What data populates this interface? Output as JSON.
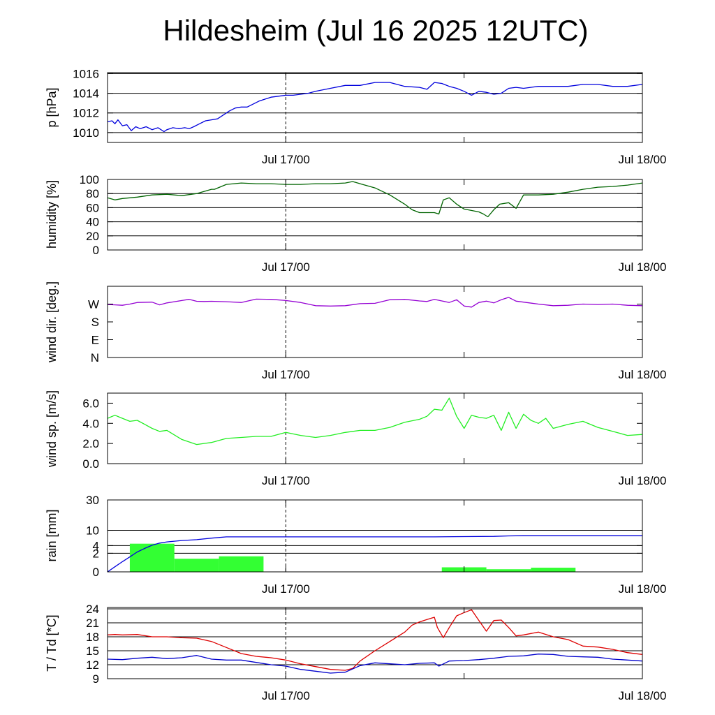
{
  "title": "Hildesheim (Jul 16 2025 12UTC)",
  "time_axis": {
    "range_hours": [
      0,
      36
    ],
    "major_ticks": [
      {
        "h": 12,
        "label": "Jul 17/00"
      },
      {
        "h": 36,
        "label": "Jul 18/00"
      }
    ],
    "minor_ticks_hours": [
      24
    ],
    "midnight_marker_hours": 12
  },
  "colors": {
    "pressure": "#0000dd",
    "humidity": "#006400",
    "wind_dir": "#9400d3",
    "wind_speed": "#22ee22",
    "rain_bar": "#33ff33",
    "rain_cum": "#0000dd",
    "temperature": "#dd0000",
    "dewpoint": "#0000cc"
  },
  "chart_data": [
    {
      "type": "line",
      "ylabel": "p [hPa]",
      "ylim": [
        1009,
        1016.1
      ],
      "yticks": [
        1010,
        1012,
        1014,
        1016
      ],
      "ytick_labels": [
        "1010",
        "1012",
        "1014",
        "1016"
      ],
      "grid": true,
      "series": [
        {
          "color_key": "pressure",
          "x": [
            0,
            0.3,
            0.5,
            0.7,
            1.0,
            1.3,
            1.6,
            1.9,
            2.2,
            2.6,
            3.0,
            3.4,
            3.8,
            4.0,
            4.4,
            4.8,
            5.2,
            5.5,
            5.8,
            6.2,
            6.6,
            7.0,
            7.4,
            7.8,
            8.2,
            8.6,
            9.0,
            9.4,
            9.8,
            10.2,
            10.6,
            11.0,
            11.5,
            12.0,
            12.5,
            13.0,
            13.5,
            14.0,
            15.0,
            16.0,
            17.0,
            18.0,
            19.0,
            20.0,
            21.0,
            21.5,
            22.0,
            22.5,
            23.0,
            23.5,
            24.0,
            24.5,
            25.0,
            25.5,
            26.0,
            26.5,
            27.0,
            27.5,
            28.0,
            29.0,
            30.0,
            31.0,
            32.0,
            33.0,
            34.0,
            35.0,
            36.0
          ],
          "y": [
            1011.1,
            1011.2,
            1010.9,
            1011.3,
            1010.7,
            1010.8,
            1010.2,
            1010.6,
            1010.4,
            1010.6,
            1010.3,
            1010.5,
            1010.1,
            1010.3,
            1010.5,
            1010.4,
            1010.5,
            1010.4,
            1010.6,
            1010.9,
            1011.2,
            1011.3,
            1011.4,
            1011.8,
            1012.2,
            1012.5,
            1012.6,
            1012.6,
            1012.9,
            1013.2,
            1013.4,
            1013.6,
            1013.7,
            1013.8,
            1013.8,
            1013.9,
            1014.0,
            1014.2,
            1014.5,
            1014.8,
            1014.8,
            1015.1,
            1015.1,
            1014.7,
            1014.6,
            1014.4,
            1015.1,
            1015.0,
            1014.7,
            1014.5,
            1014.2,
            1013.8,
            1014.2,
            1014.1,
            1013.9,
            1014.0,
            1014.5,
            1014.6,
            1014.5,
            1014.7,
            1014.7,
            1014.7,
            1014.9,
            1014.9,
            1014.7,
            1014.7,
            1014.9
          ]
        }
      ]
    },
    {
      "type": "line",
      "ylabel": "humidity [%]",
      "ylim": [
        0,
        100
      ],
      "yticks": [
        0,
        20,
        40,
        60,
        80,
        100
      ],
      "ytick_labels": [
        "0",
        "20",
        "40",
        "60",
        "80",
        "100"
      ],
      "grid": true,
      "series": [
        {
          "color_key": "humidity",
          "x": [
            0,
            0.5,
            1.0,
            2.0,
            3.0,
            4.0,
            5.0,
            6.0,
            7.0,
            7.2,
            8.0,
            9.0,
            10.0,
            11.0,
            12.0,
            13.0,
            14.0,
            15.0,
            16.0,
            16.5,
            17.0,
            18.0,
            19.0,
            20.0,
            20.5,
            21.0,
            22.0,
            22.3,
            22.6,
            23.0,
            23.5,
            24.0,
            25.0,
            25.3,
            25.6,
            26.0,
            26.4,
            27.0,
            27.5,
            28.0,
            29.0,
            30.0,
            31.0,
            32.0,
            33.0,
            34.0,
            35.0,
            36.0
          ],
          "y": [
            74,
            71,
            73,
            75,
            78,
            79,
            77,
            80,
            86,
            86,
            93,
            95,
            94,
            94,
            93,
            93,
            94,
            94,
            95,
            97,
            94,
            88,
            78,
            65,
            57,
            53,
            53,
            51,
            71,
            74,
            65,
            58,
            54,
            51,
            47,
            57,
            65,
            67,
            59,
            78,
            78,
            79,
            82,
            86,
            89,
            90,
            92,
            95
          ]
        }
      ]
    },
    {
      "type": "line",
      "ylabel": "wind dir. [deg.]",
      "ylim": [
        0,
        360
      ],
      "yticks": [
        0,
        90,
        180,
        270
      ],
      "ytick_labels": [
        "N",
        "E",
        "S",
        "W"
      ],
      "grid": false,
      "series": [
        {
          "color_key": "wind_dir",
          "x": [
            0,
            0.5,
            1.0,
            1.5,
            2.0,
            3.0,
            3.5,
            4.0,
            5.0,
            5.5,
            6.0,
            6.5,
            7.0,
            8.0,
            9.0,
            10.0,
            11.0,
            12.0,
            13.0,
            14.0,
            15.0,
            16.0,
            17.0,
            18.0,
            19.0,
            20.0,
            21.0,
            21.5,
            22.0,
            22.5,
            23.0,
            23.5,
            24.0,
            24.5,
            25.0,
            25.5,
            26.0,
            26.5,
            27.0,
            27.5,
            28.0,
            29.0,
            30.0,
            31.0,
            32.0,
            33.0,
            34.0,
            35.0,
            36.0
          ],
          "y": [
            268,
            266,
            264,
            270,
            278,
            280,
            266,
            276,
            288,
            294,
            284,
            283,
            284,
            282,
            278,
            295,
            294,
            288,
            278,
            262,
            260,
            262,
            272,
            274,
            292,
            294,
            286,
            283,
            294,
            286,
            278,
            292,
            260,
            255,
            278,
            285,
            276,
            292,
            304,
            285,
            280,
            270,
            262,
            264,
            270,
            268,
            270,
            264,
            262
          ]
        }
      ]
    },
    {
      "type": "line",
      "ylabel": "wind sp. [m/s]",
      "ylim": [
        0,
        7.0
      ],
      "yticks": [
        0,
        2,
        4,
        6
      ],
      "ytick_labels": [
        "0.0",
        "2.0",
        "4.0",
        "6.0"
      ],
      "grid": false,
      "series": [
        {
          "color_key": "wind_speed",
          "x": [
            0,
            0.5,
            1.0,
            1.5,
            2.0,
            2.5,
            3.0,
            3.5,
            4.0,
            5.0,
            6.0,
            6.5,
            7.0,
            8.0,
            9.0,
            10.0,
            11.0,
            12.0,
            13.0,
            14.0,
            15.0,
            16.0,
            17.0,
            18.0,
            19.0,
            20.0,
            21.0,
            21.5,
            22.0,
            22.5,
            23.0,
            23.5,
            24.0,
            24.5,
            25.0,
            25.5,
            26.0,
            26.5,
            27.0,
            27.5,
            28.0,
            28.5,
            29.0,
            29.5,
            30.0,
            31.0,
            32.0,
            33.0,
            34.0,
            35.0,
            36.0
          ],
          "y": [
            4.5,
            4.8,
            4.5,
            4.2,
            4.3,
            3.9,
            3.5,
            3.2,
            3.3,
            2.4,
            1.9,
            2.0,
            2.1,
            2.5,
            2.6,
            2.7,
            2.7,
            3.1,
            2.8,
            2.6,
            2.8,
            3.1,
            3.3,
            3.3,
            3.6,
            4.1,
            4.4,
            4.7,
            5.4,
            5.3,
            6.5,
            4.7,
            3.5,
            4.8,
            4.6,
            4.5,
            4.8,
            3.3,
            5.1,
            3.5,
            4.9,
            4.3,
            4.0,
            4.5,
            3.5,
            3.9,
            4.2,
            3.6,
            3.2,
            2.8,
            2.9
          ]
        }
      ]
    },
    {
      "type": "bar+line",
      "ylabel": "rain [mm]",
      "scale": "sqrt",
      "ylim": [
        0,
        30
      ],
      "yticks": [
        0,
        2,
        4,
        10,
        30
      ],
      "ytick_labels": [
        "0",
        "2",
        "4",
        "10",
        "30"
      ],
      "grid": true,
      "bars": {
        "color_key": "rain_bar",
        "bins_hours": [
          [
            1.5,
            4.5
          ],
          [
            4.5,
            7.5
          ],
          [
            7.5,
            10.5
          ],
          [
            22.5,
            25.5
          ],
          [
            25.5,
            28.5
          ],
          [
            28.5,
            31.5
          ]
        ],
        "values": [
          4.6,
          1.0,
          1.4,
          0.12,
          0.04,
          0.1
        ]
      },
      "series": [
        {
          "color_key": "rain_cum",
          "x": [
            0,
            0.5,
            1.0,
            1.5,
            2.0,
            2.5,
            3.0,
            3.5,
            4.0,
            5.0,
            6.0,
            7.0,
            8.0,
            9.0,
            10.0,
            12.0,
            16.0,
            20.0,
            22.0,
            24.0,
            26.0,
            27.0,
            28.0,
            30.0,
            32.0,
            36.0
          ],
          "y": [
            0,
            0.15,
            0.6,
            1.3,
            2.3,
            3.2,
            4.1,
            4.8,
            5.2,
            5.7,
            6.0,
            6.6,
            7.1,
            7.1,
            7.1,
            7.1,
            7.1,
            7.1,
            7.1,
            7.2,
            7.3,
            7.5,
            7.6,
            7.6,
            7.6,
            7.6
          ]
        }
      ]
    },
    {
      "type": "line",
      "ylabel": "T / Td [*C]",
      "ylim": [
        9,
        24.3
      ],
      "yticks": [
        9,
        12,
        15,
        18,
        21,
        24
      ],
      "ytick_labels": [
        "9",
        "12",
        "15",
        "18",
        "21",
        "24"
      ],
      "grid": true,
      "series": [
        {
          "color_key": "temperature",
          "x": [
            0,
            0.5,
            1.0,
            2.0,
            3.0,
            4.0,
            5.0,
            6.0,
            7.0,
            8.0,
            9.0,
            10.0,
            11.0,
            12.0,
            13.0,
            14.0,
            15.0,
            16.0,
            16.5,
            17.0,
            18.0,
            19.0,
            20.0,
            20.5,
            21.0,
            21.5,
            22.0,
            22.2,
            22.6,
            23.0,
            23.5,
            24.0,
            24.5,
            25.0,
            25.5,
            26.0,
            26.5,
            27.0,
            27.5,
            28.0,
            29.0,
            30.0,
            31.0,
            32.0,
            33.0,
            34.0,
            35.0,
            36.0
          ],
          "y": [
            18.4,
            18.5,
            18.4,
            18.5,
            18.0,
            18.0,
            17.8,
            17.7,
            17.0,
            15.7,
            14.4,
            13.8,
            13.5,
            13.0,
            12.2,
            11.6,
            11.0,
            10.8,
            11.2,
            12.8,
            15.0,
            17.0,
            19.0,
            20.5,
            21.2,
            21.7,
            22.2,
            20.0,
            17.8,
            20.0,
            22.5,
            23.2,
            23.8,
            21.5,
            19.2,
            21.5,
            21.6,
            20.0,
            18.2,
            18.4,
            19.0,
            18.0,
            17.4,
            16.0,
            15.8,
            15.3,
            14.6,
            14.2
          ]
        },
        {
          "color_key": "dewpoint",
          "x": [
            0,
            1.0,
            2.0,
            3.0,
            4.0,
            5.0,
            6.0,
            7.0,
            8.0,
            9.0,
            10.0,
            11.0,
            12.0,
            13.0,
            14.0,
            15.0,
            16.0,
            17.0,
            18.0,
            19.0,
            20.0,
            21.0,
            22.0,
            22.3,
            23.0,
            24.0,
            25.0,
            26.0,
            27.0,
            28.0,
            29.0,
            30.0,
            31.0,
            32.0,
            33.0,
            34.0,
            35.0,
            36.0
          ],
          "y": [
            13.2,
            13.1,
            13.4,
            13.6,
            13.3,
            13.5,
            14.0,
            13.2,
            13.0,
            13.0,
            12.5,
            12.0,
            11.7,
            11.0,
            10.6,
            10.2,
            10.4,
            11.8,
            12.4,
            12.2,
            12.0,
            12.3,
            12.4,
            11.7,
            12.8,
            12.9,
            13.1,
            13.4,
            13.8,
            13.9,
            14.3,
            14.2,
            13.8,
            13.7,
            13.6,
            13.2,
            13.0,
            12.8
          ]
        }
      ]
    }
  ]
}
